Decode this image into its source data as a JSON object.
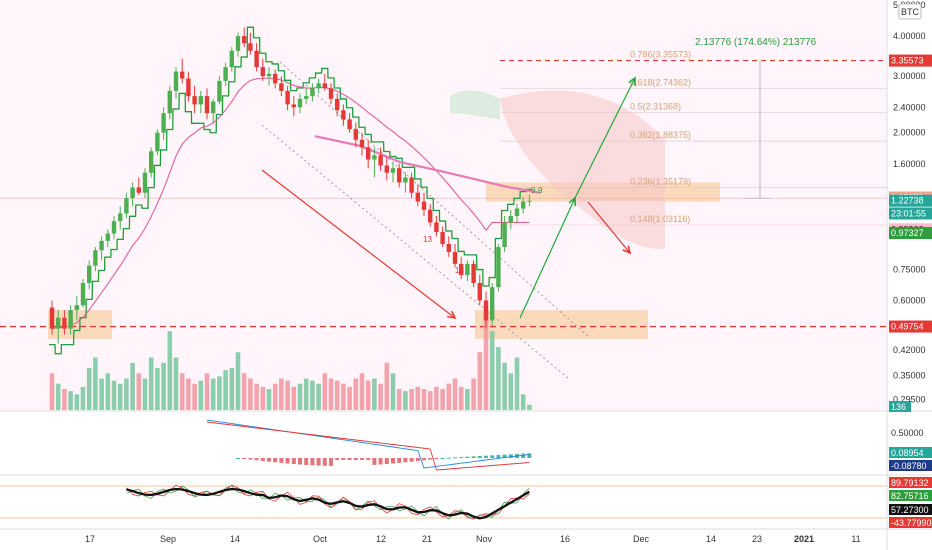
{
  "chart_data": {
    "type": "candlestick",
    "quote_currency": "BTC",
    "y_scale": "log",
    "ylim": [
      0.2895,
      5.0
    ],
    "x_ticks": [
      "17",
      "Sep",
      "14",
      "Oct",
      "12",
      "21",
      "Nov",
      "16",
      "Dec",
      "14",
      "23",
      "2021",
      "11"
    ],
    "x_tick_bold": "2021",
    "y_ticks": [
      "5.00000",
      "4.00000",
      "3.00000",
      "2.40000",
      "2.00000",
      "1.60000",
      "0.75000",
      "0.60000",
      "0.42000",
      "0.35000",
      "0.29500"
    ],
    "price_tags": [
      {
        "label": "3.35573",
        "value": 3.35573,
        "color": "#e53935",
        "text_color": "light"
      },
      {
        "label": "1.25579",
        "value": 1.25579,
        "color": "#f2a28c",
        "text_color": "light"
      },
      {
        "label": "1.22738",
        "value": 1.22738,
        "color": "#26a69a",
        "text_color": "light"
      },
      {
        "label": "23:01:55",
        "value": 1.12,
        "color": "#26a69a",
        "text_color": "light"
      },
      {
        "label": "0.99960",
        "value": 0.9996,
        "color": "#f8bbd0",
        "text_color": "dark"
      },
      {
        "label": "0.97327",
        "value": 0.97327,
        "color": "#2e9e3a",
        "text_color": "light"
      },
      {
        "label": "0.49754",
        "value": 0.49754,
        "color": "#e53935",
        "text_color": "light"
      }
    ],
    "fib_levels": [
      {
        "label": "0.786(3.35573)",
        "value": 3.35573
      },
      {
        "label": "0.618(2.74362)",
        "value": 2.74362
      },
      {
        "label": "0.5(2.31368)",
        "value": 2.31368
      },
      {
        "label": "0.382(1.88375)",
        "value": 1.88375
      },
      {
        "label": "0.236(1.35179)",
        "value": 1.35179
      },
      {
        "label": "0.148(1.03116)",
        "value": 1.03116
      }
    ],
    "measure_label": "2.13776 (174.64%) 213776",
    "annotations": [
      "13",
      "13",
      "9",
      "9"
    ],
    "candles": [
      [
        0.57,
        0.6,
        0.47,
        0.49
      ],
      [
        0.49,
        0.56,
        0.44,
        0.53
      ],
      [
        0.53,
        0.56,
        0.47,
        0.49
      ],
      [
        0.49,
        0.58,
        0.47,
        0.56
      ],
      [
        0.56,
        0.62,
        0.52,
        0.58
      ],
      [
        0.58,
        0.7,
        0.57,
        0.68
      ],
      [
        0.68,
        0.8,
        0.65,
        0.77
      ],
      [
        0.77,
        0.88,
        0.74,
        0.86
      ],
      [
        0.86,
        0.95,
        0.8,
        0.92
      ],
      [
        0.92,
        1.0,
        0.88,
        0.97
      ],
      [
        0.97,
        1.1,
        0.93,
        1.06
      ],
      [
        1.06,
        1.18,
        1.0,
        1.12
      ],
      [
        1.12,
        1.3,
        1.08,
        1.25
      ],
      [
        1.25,
        1.4,
        1.18,
        1.35
      ],
      [
        1.35,
        1.45,
        1.28,
        1.3
      ],
      [
        1.3,
        1.55,
        1.25,
        1.5
      ],
      [
        1.5,
        1.8,
        1.45,
        1.75
      ],
      [
        1.75,
        2.05,
        1.7,
        2.0
      ],
      [
        2.0,
        2.4,
        1.9,
        2.3
      ],
      [
        2.3,
        2.8,
        2.2,
        2.7
      ],
      [
        2.7,
        3.2,
        2.55,
        3.1
      ],
      [
        3.1,
        3.4,
        2.85,
        2.95
      ],
      [
        2.95,
        3.1,
        2.5,
        2.6
      ],
      [
        2.6,
        2.8,
        2.3,
        2.45
      ],
      [
        2.45,
        2.7,
        2.3,
        2.6
      ],
      [
        2.6,
        2.75,
        2.2,
        2.3
      ],
      [
        2.3,
        2.55,
        2.15,
        2.5
      ],
      [
        2.5,
        3.0,
        2.45,
        2.9
      ],
      [
        2.9,
        3.3,
        2.8,
        3.2
      ],
      [
        3.2,
        3.7,
        3.1,
        3.6
      ],
      [
        3.6,
        4.1,
        3.45,
        4.0
      ],
      [
        4.0,
        4.25,
        3.7,
        3.8
      ],
      [
        3.8,
        4.1,
        3.5,
        3.6
      ],
      [
        3.6,
        3.8,
        3.1,
        3.2
      ],
      [
        3.2,
        3.4,
        2.9,
        3.0
      ],
      [
        3.0,
        3.2,
        2.8,
        3.05
      ],
      [
        3.05,
        3.15,
        2.75,
        2.85
      ],
      [
        2.85,
        3.0,
        2.6,
        2.7
      ],
      [
        2.7,
        2.8,
        2.35,
        2.45
      ],
      [
        2.45,
        2.6,
        2.25,
        2.4
      ],
      [
        2.4,
        2.65,
        2.3,
        2.55
      ],
      [
        2.55,
        2.75,
        2.45,
        2.6
      ],
      [
        2.6,
        2.85,
        2.5,
        2.75
      ],
      [
        2.75,
        2.95,
        2.65,
        2.85
      ],
      [
        2.85,
        3.05,
        2.7,
        2.75
      ],
      [
        2.75,
        2.85,
        2.45,
        2.55
      ],
      [
        2.55,
        2.65,
        2.25,
        2.35
      ],
      [
        2.35,
        2.45,
        2.1,
        2.2
      ],
      [
        2.2,
        2.3,
        2.0,
        2.05
      ],
      [
        2.05,
        2.15,
        1.8,
        1.9
      ],
      [
        1.9,
        2.0,
        1.7,
        1.8
      ],
      [
        1.8,
        1.9,
        1.55,
        1.65
      ],
      [
        1.65,
        1.8,
        1.45,
        1.7
      ],
      [
        1.7,
        1.8,
        1.52,
        1.58
      ],
      [
        1.58,
        1.68,
        1.42,
        1.5
      ],
      [
        1.5,
        1.62,
        1.4,
        1.55
      ],
      [
        1.55,
        1.6,
        1.35,
        1.4
      ],
      [
        1.4,
        1.5,
        1.3,
        1.45
      ],
      [
        1.45,
        1.5,
        1.25,
        1.3
      ],
      [
        1.3,
        1.38,
        1.18,
        1.22
      ],
      [
        1.22,
        1.3,
        1.1,
        1.15
      ],
      [
        1.15,
        1.2,
        1.02,
        1.05
      ],
      [
        1.05,
        1.1,
        0.95,
        0.98
      ],
      [
        0.98,
        1.02,
        0.88,
        0.9
      ],
      [
        0.9,
        0.95,
        0.82,
        0.85
      ],
      [
        0.85,
        0.9,
        0.76,
        0.78
      ],
      [
        0.78,
        0.82,
        0.7,
        0.72
      ],
      [
        0.72,
        0.8,
        0.69,
        0.78
      ],
      [
        0.78,
        0.8,
        0.66,
        0.68
      ],
      [
        0.68,
        0.72,
        0.58,
        0.6
      ],
      [
        0.6,
        0.64,
        0.49,
        0.52
      ],
      [
        0.52,
        0.68,
        0.5,
        0.66
      ],
      [
        0.66,
        0.9,
        0.64,
        0.88
      ],
      [
        0.88,
        1.1,
        0.85,
        1.05
      ],
      [
        1.05,
        1.15,
        1.0,
        1.1
      ],
      [
        1.1,
        1.2,
        1.04,
        1.16
      ],
      [
        1.16,
        1.26,
        1.12,
        1.22
      ],
      [
        1.22,
        1.28,
        1.18,
        1.227
      ]
    ],
    "volume": [
      0.35,
      0.25,
      0.2,
      0.18,
      0.15,
      0.22,
      0.4,
      0.5,
      0.3,
      0.35,
      0.28,
      0.25,
      0.3,
      0.45,
      0.35,
      0.3,
      0.5,
      0.4,
      0.45,
      0.75,
      0.5,
      0.35,
      0.3,
      0.25,
      0.28,
      0.35,
      0.3,
      0.32,
      0.38,
      0.4,
      0.55,
      0.35,
      0.3,
      0.25,
      0.22,
      0.2,
      0.25,
      0.3,
      0.28,
      0.22,
      0.25,
      0.3,
      0.28,
      0.25,
      0.35,
      0.3,
      0.28,
      0.25,
      0.22,
      0.3,
      0.35,
      0.28,
      0.3,
      0.25,
      0.45,
      0.35,
      0.2,
      0.18,
      0.2,
      0.22,
      0.2,
      0.18,
      0.22,
      0.2,
      0.25,
      0.3,
      0.22,
      0.2,
      0.3,
      0.55,
      1.0,
      0.75,
      0.6,
      0.45,
      0.35,
      0.5,
      0.15,
      0.05
    ]
  },
  "axes": {
    "quote": "BTC",
    "macd_ticks": [
      "0.50000",
      "0.08954",
      "-0.08780"
    ],
    "osc_ticks": [
      "89.79132",
      "82.75716",
      "57.27300",
      "-43.77990"
    ],
    "volume_tag": "136"
  }
}
